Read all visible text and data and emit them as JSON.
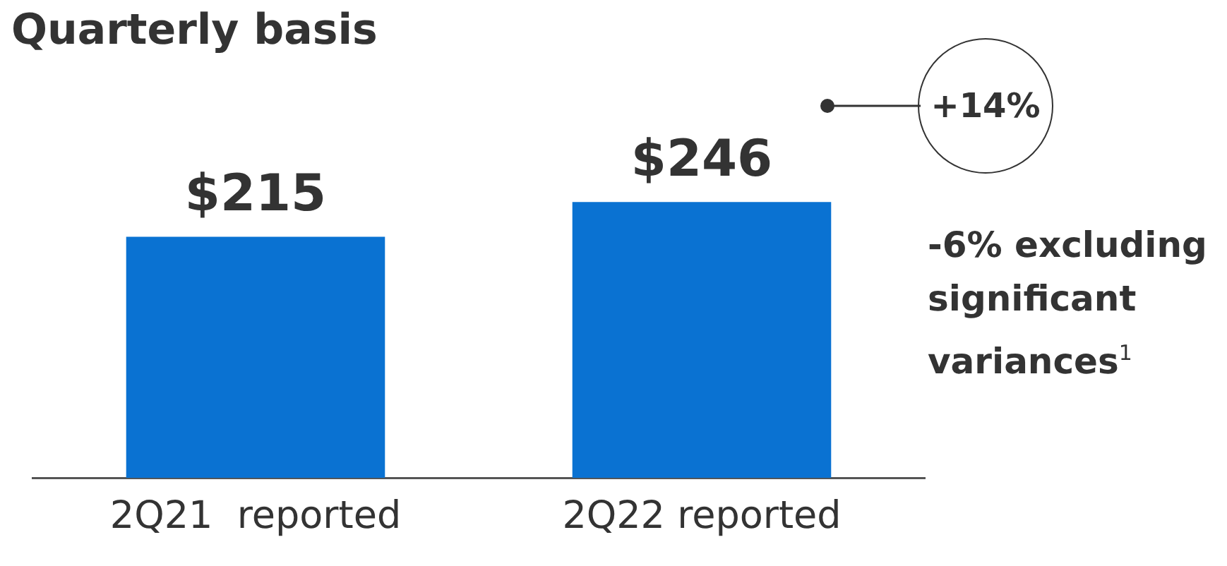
{
  "chart_data": {
    "type": "bar",
    "title": "Quarterly basis",
    "categories": [
      "2Q21  reported",
      "2Q22 reported"
    ],
    "values": [
      215,
      246
    ],
    "value_labels": [
      "$215",
      "$246"
    ],
    "color": "#0a72d2",
    "grid": false,
    "legend": false,
    "annotations": [
      "+14%",
      "-6% excluding significant variances$^{1}$"
    ]
  }
}
